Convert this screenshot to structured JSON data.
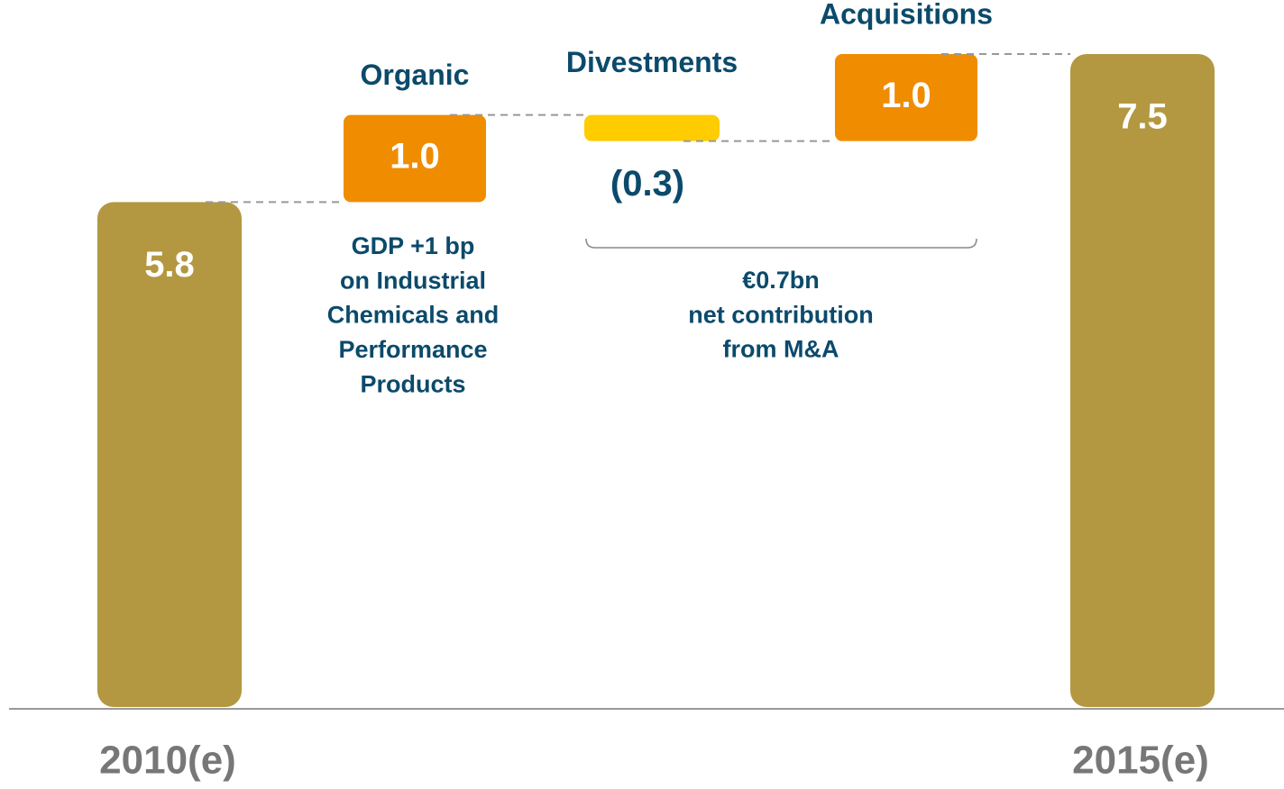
{
  "chart_data": {
    "type": "waterfall",
    "categories": [
      "2010(e)",
      "Organic",
      "Divestments",
      "Acquisitions",
      "2015(e)"
    ],
    "values": [
      5.8,
      1.0,
      -0.3,
      1.0,
      7.5
    ],
    "value_labels": [
      "5.8",
      "1.0",
      "(0.3)",
      "1.0",
      "7.5"
    ],
    "colors": {
      "total": "#b39841",
      "increase": "#f08c00",
      "decrease": "#ffcc00"
    },
    "annotations": [
      {
        "lines": [
          "GDP +1 bp",
          "on Industrial",
          "Chemicals and",
          "Performance",
          "Products"
        ]
      },
      {
        "lines": [
          "€0.7bn",
          "net contribution",
          "from M&A"
        ]
      }
    ]
  }
}
